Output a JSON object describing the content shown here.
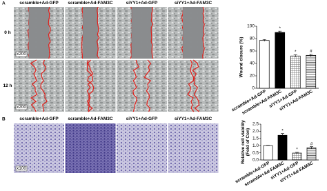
{
  "figure": {
    "panels": [
      {
        "label": "A",
        "columns": [
          "scramble+Ad-GFP",
          "scramble+Ad-FAM3C",
          "siYY1+Ad-GFP",
          "siYY1+Ad-FAM3C"
        ],
        "rows": [
          "0 h",
          "12 h"
        ],
        "magnification": "x200"
      },
      {
        "label": "B",
        "columns": [
          "scramble+Ad-GFP",
          "scramble+Ad-FAM3C",
          "siYY1+Ad-GFP",
          "siYY1+Ad-FAM3C"
        ],
        "magnification": "x100"
      }
    ]
  },
  "chart_data": [
    {
      "type": "bar",
      "ylabel": [
        "Wound closure (%)"
      ],
      "categories": [
        "scramble+Ad-GFP",
        "scramble+Ad-FAM3C",
        "siYY1+Ad-GFP",
        "siYY1+Ad-FAM3C"
      ],
      "values": [
        77,
        90,
        52,
        53
      ],
      "errors": [
        1.5,
        2,
        2,
        2
      ],
      "colors": [
        "#ffffff",
        "#000000",
        "#ffffff",
        "#ffffff"
      ],
      "hatch": [
        null,
        null,
        "grid",
        "horizontal"
      ],
      "annotations": [
        null,
        "*",
        "*",
        "#"
      ],
      "ylim": [
        0,
        100
      ],
      "yticks": [
        0,
        20,
        40,
        60,
        80,
        100
      ]
    },
    {
      "type": "bar",
      "ylabel": [
        "Relative cell viability",
        "(Fold of Con)"
      ],
      "categories": [
        "scramble+Ad-GFP",
        "scramble+Ad-FAM3C",
        "siYY1+Ad-GFP",
        "siYY1+Ad-FAM3C"
      ],
      "values": [
        1.0,
        1.72,
        0.48,
        0.85
      ],
      "errors": [
        0.02,
        0.12,
        0.05,
        0.08
      ],
      "colors": [
        "#ffffff",
        "#000000",
        "#ffffff",
        "#ffffff"
      ],
      "hatch": [
        null,
        null,
        "grid",
        "horizontal"
      ],
      "annotations": [
        null,
        "*",
        "*",
        "#"
      ],
      "ylim": [
        0,
        2.5
      ],
      "yticks": [
        {
          "value": 0,
          "label": "0.0"
        },
        0.5,
        {
          "value": 1,
          "label": "1.0"
        },
        1.5,
        {
          "value": 2,
          "label": "2.0"
        },
        2.5
      ]
    }
  ]
}
